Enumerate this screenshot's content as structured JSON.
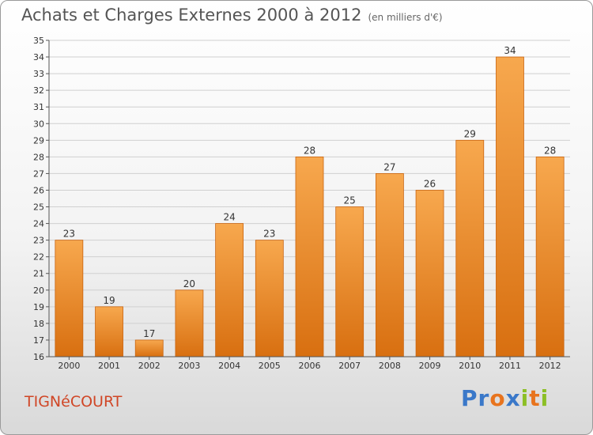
{
  "title": "Achats et Charges Externes 2000 à 2012",
  "subtitle": "(en milliers d'€)",
  "commune": "TIGNéCOURT",
  "logo": {
    "text": "Proxiti",
    "letters": [
      {
        "ch": "P",
        "color": "#3a78c9"
      },
      {
        "ch": "r",
        "color": "#3a78c9"
      },
      {
        "ch": "o",
        "color": "#e8741e"
      },
      {
        "ch": "x",
        "color": "#3a78c9"
      },
      {
        "ch": "i",
        "color": "#8cbf26"
      },
      {
        "ch": "t",
        "color": "#e8741e"
      },
      {
        "ch": "i",
        "color": "#8cbf26"
      }
    ]
  },
  "colors": {
    "bar_top": "#f7a84e",
    "bar_bottom": "#d86f10",
    "bar_stroke": "#c96410",
    "grid": "#d0d0d0",
    "axis": "#555555"
  },
  "chart_data": {
    "type": "bar",
    "categories": [
      "2000",
      "2001",
      "2002",
      "2003",
      "2004",
      "2005",
      "2006",
      "2007",
      "2008",
      "2009",
      "2010",
      "2011",
      "2012"
    ],
    "values": [
      23,
      19,
      17,
      20,
      24,
      23,
      28,
      25,
      27,
      26,
      29,
      34,
      28
    ],
    "data_labels": [
      "23",
      "19",
      "17",
      "20",
      "24",
      "23",
      "28",
      "25",
      "27",
      "26",
      "29",
      "34",
      "28"
    ],
    "ylim": [
      16,
      35
    ],
    "yticks": [
      16,
      17,
      18,
      19,
      20,
      21,
      22,
      23,
      24,
      25,
      26,
      27,
      28,
      29,
      30,
      31,
      32,
      33,
      34,
      35
    ],
    "grid": true,
    "xlabel": "",
    "ylabel": ""
  }
}
